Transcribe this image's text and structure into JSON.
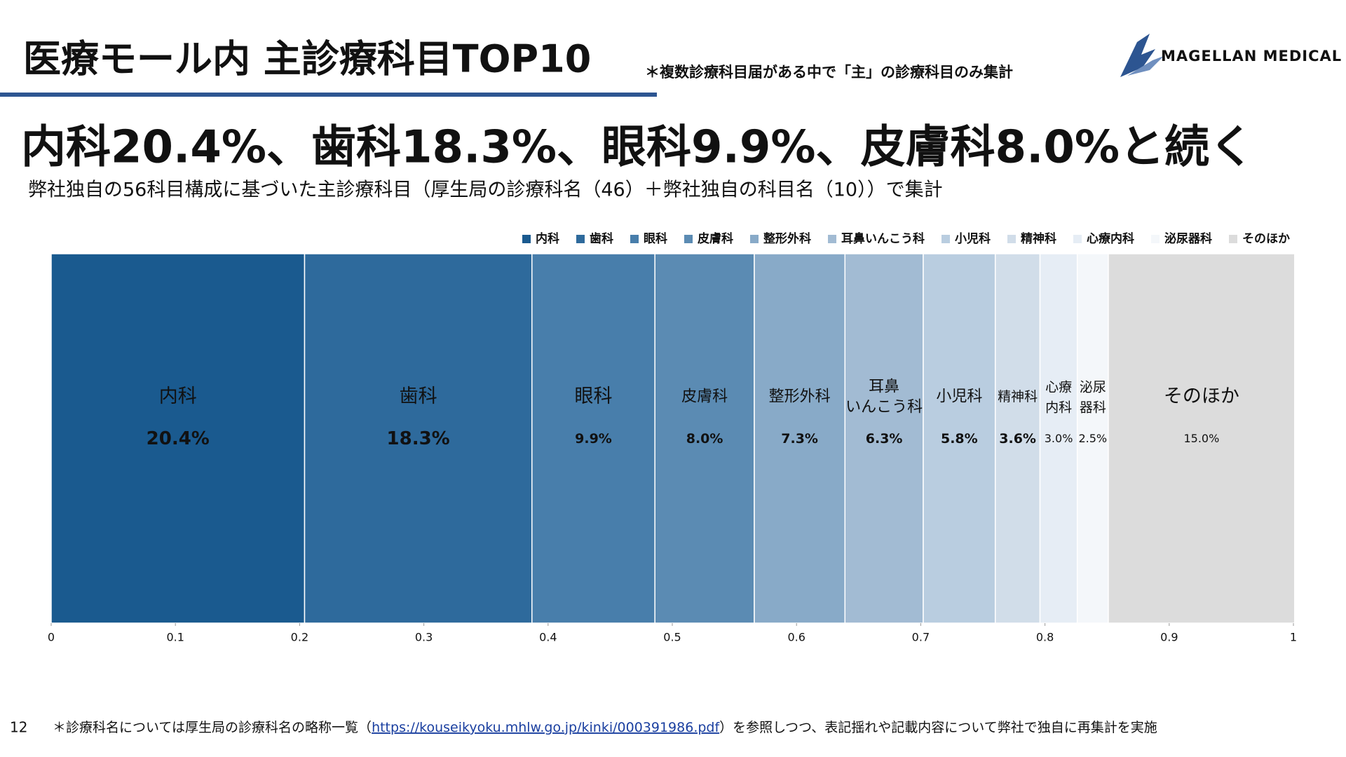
{
  "header": {
    "title": "医療モール内 主診療科目TOP10",
    "note": "＊複数診療科目届がある中で「主」の診療科目のみ集計",
    "logo": "MAGELLAN MEDICAL"
  },
  "headline": "内科20.4%、歯科18.3%、眼科9.9%、皮膚科8.0%と続く",
  "subtitle": "弊社独自の56科目構成に基づいた主診療科目（厚生局の診療科名（46）＋弊社独自の科目名（10））で集計",
  "chart_data": {
    "type": "stacked_bar_horizontal",
    "series": [
      {
        "name": "内科",
        "color": "#1a5a8f",
        "values": [
          0.204
        ],
        "value_labels": [
          "20.4%"
        ]
      },
      {
        "name": "歯科",
        "color": "#2e6a9c",
        "values": [
          0.183
        ],
        "value_labels": [
          "18.3%"
        ]
      },
      {
        "name": "眼科",
        "color": "#487eab",
        "values": [
          0.099
        ],
        "value_labels": [
          "9.9%"
        ]
      },
      {
        "name": "皮膚科",
        "color": "#5b8bb3",
        "values": [
          0.08
        ],
        "value_labels": [
          "8.0%"
        ]
      },
      {
        "name": "整形外科",
        "color": "#88aac8",
        "values": [
          0.073
        ],
        "value_labels": [
          "7.3%"
        ]
      },
      {
        "name": "耳鼻いんこう科",
        "color": "#a2bbd3",
        "values": [
          0.063
        ],
        "value_labels": [
          "6.3%"
        ]
      },
      {
        "name": "小児科",
        "color": "#b9cde0",
        "values": [
          0.058
        ],
        "value_labels": [
          "5.8%"
        ]
      },
      {
        "name": "精神科",
        "color": "#d1dde9",
        "values": [
          0.036
        ],
        "value_labels": [
          "3.6%"
        ]
      },
      {
        "name": "心療内科",
        "color": "#e6edf5",
        "values": [
          0.03
        ],
        "value_labels": [
          "3.0%"
        ]
      },
      {
        "name": "泌尿器科",
        "color": "#f4f7fa",
        "values": [
          0.025
        ],
        "value_labels": [
          "2.5%"
        ]
      },
      {
        "name": "そのほか",
        "color": "#dcdcdc",
        "values": [
          0.15
        ],
        "value_labels": [
          "15.0%"
        ]
      }
    ],
    "xlim": [
      0,
      1
    ],
    "xticks": [
      0,
      0.1,
      0.2,
      0.3,
      0.4,
      0.5,
      0.6,
      0.7,
      0.8,
      0.9,
      1
    ],
    "legend": "top-right"
  },
  "footer": {
    "page": "12",
    "note_before": "＊診療科名については厚生局の診療科名の略称一覧（",
    "link": "https://kouseikyoku.mhlw.go.jp/kinki/000391986.pdf",
    "note_after": "）を参照しつつ、表記揺れや記載内容について弊社で独自に再集計を実施"
  }
}
